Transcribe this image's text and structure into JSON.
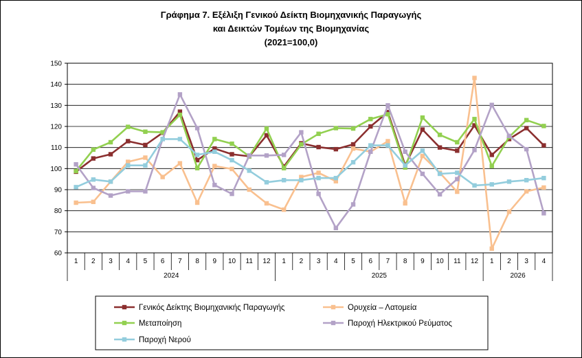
{
  "chart_data": {
    "type": "line",
    "title_lines": [
      "Γράφημα 7. Εξέλιξη Γενικού Δείκτη Βιομηχανικής Παραγωγής",
      "και Δεικτών Τομέων της Βιομηχανίας",
      "(2021=100,0)"
    ],
    "x_months": [
      "1",
      "2",
      "3",
      "4",
      "5",
      "6",
      "7",
      "8",
      "9",
      "10",
      "11",
      "12",
      "1",
      "2",
      "3",
      "4",
      "5",
      "6",
      "7",
      "8",
      "9",
      "10",
      "11",
      "12",
      "1",
      "2",
      "3",
      "4"
    ],
    "x_years": [
      {
        "label": "2024",
        "start": 0,
        "count": 12
      },
      {
        "label": "2025",
        "start": 12,
        "count": 12
      },
      {
        "label": "2026",
        "start": 24,
        "count": 4
      }
    ],
    "ylim": [
      60,
      150
    ],
    "yticks": [
      60,
      70,
      80,
      90,
      100,
      110,
      120,
      130,
      140,
      150
    ],
    "grid": "horizontal",
    "legend_position": "bottom",
    "series": [
      {
        "name": "Γενικός Δείκτης Βιομηχανικής Παραγωγής",
        "color": "#8B2F2F",
        "values": [
          98.5,
          104.8,
          106.8,
          113.0,
          111.2,
          117.0,
          127.0,
          104.0,
          109.5,
          106.8,
          105.8,
          115.8,
          101.0,
          112.0,
          110.2,
          109.2,
          111.5,
          120.0,
          126.8,
          101.5,
          118.5,
          110.0,
          108.5,
          120.5,
          106.5,
          114.0,
          119.2,
          111.0
        ]
      },
      {
        "name": "Ορυχεία – Λατομεία",
        "color": "#F9C08F",
        "values": [
          83.8,
          84.2,
          93.8,
          103.2,
          105.2,
          96.0,
          102.5,
          83.8,
          101.2,
          99.8,
          90.0,
          83.5,
          80.5,
          96.0,
          98.0,
          94.0,
          109.5,
          108.0,
          113.0,
          83.5,
          106.0,
          98.0,
          89.0,
          143.0,
          62.0,
          79.5,
          89.2,
          91.0
        ]
      },
      {
        "name": "Μεταποίηση",
        "color": "#92D050",
        "values": [
          98.8,
          109.0,
          112.5,
          119.8,
          117.5,
          117.2,
          125.5,
          100.2,
          114.0,
          111.8,
          105.8,
          119.0,
          100.2,
          111.5,
          116.5,
          119.2,
          119.0,
          123.5,
          125.8,
          100.5,
          124.2,
          116.0,
          112.5,
          123.5,
          101.2,
          115.0,
          123.0,
          120.2
        ]
      },
      {
        "name": "Παροχή Ηλεκτρικού Ρεύματος",
        "color": "#B3A2C7",
        "values": [
          102.0,
          90.8,
          87.2,
          89.2,
          89.2,
          114.0,
          135.2,
          119.2,
          92.2,
          88.0,
          106.2,
          106.2,
          106.5,
          117.2,
          88.0,
          71.8,
          83.0,
          108.0,
          130.0,
          108.0,
          97.5,
          87.8,
          95.0,
          108.8,
          130.2,
          115.5,
          109.2,
          78.8
        ]
      },
      {
        "name": "Παροχή Νερού",
        "color": "#93CDDD",
        "values": [
          91.2,
          94.8,
          93.8,
          101.5,
          101.5,
          114.0,
          114.0,
          106.5,
          108.0,
          104.0,
          99.0,
          93.5,
          94.5,
          94.5,
          95.5,
          95.5,
          103.0,
          111.0,
          111.0,
          101.5,
          108.5,
          97.5,
          98.0,
          92.0,
          92.5,
          93.8,
          94.5,
          95.5
        ]
      }
    ]
  }
}
